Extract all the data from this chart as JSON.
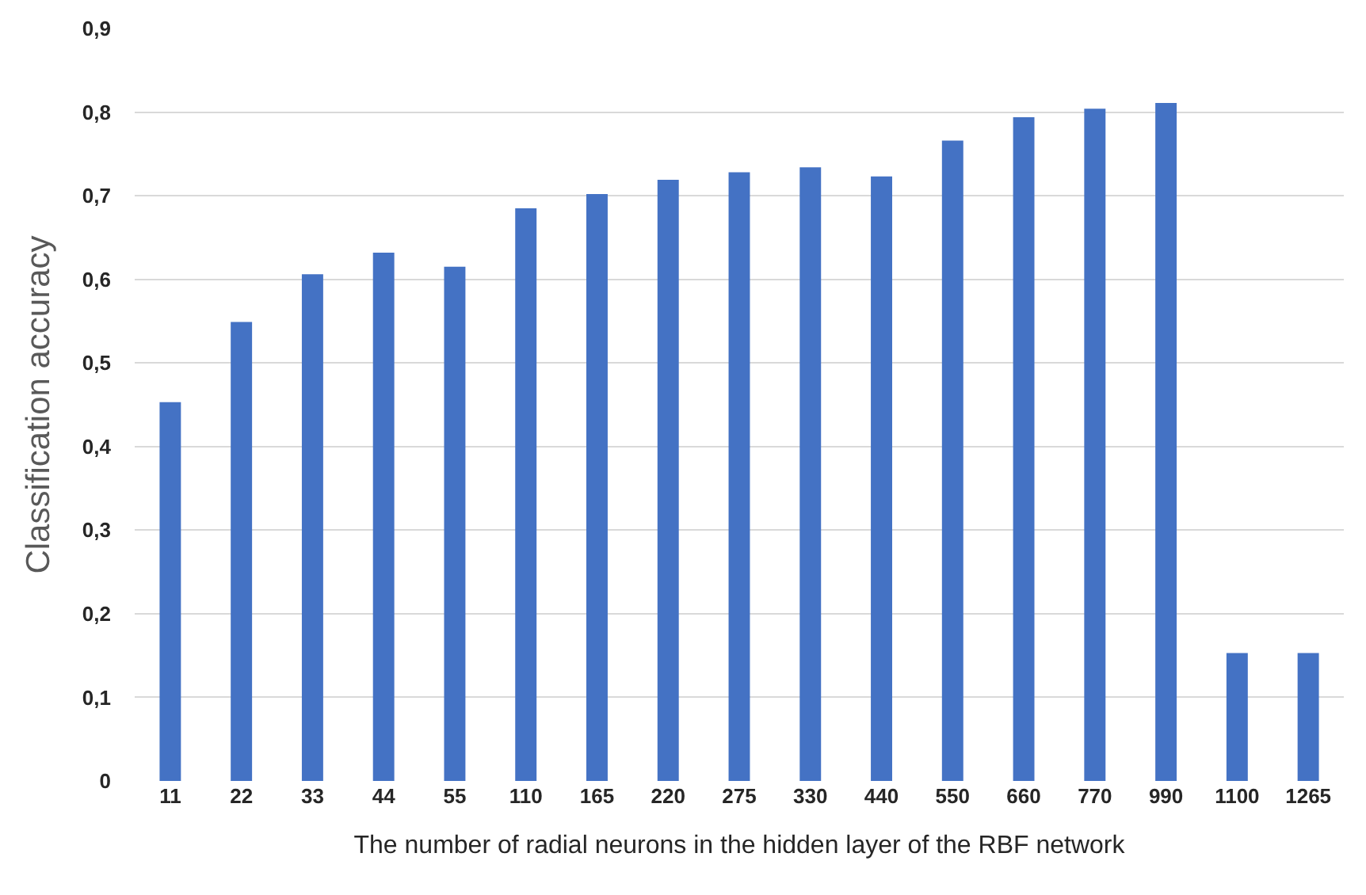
{
  "chart_data": {
    "type": "bar",
    "xlabel": "The number of radial neurons in the hidden layer of the RBF network",
    "ylabel": "Classification accuracy",
    "categories": [
      "11",
      "22",
      "33",
      "44",
      "55",
      "110",
      "165",
      "220",
      "275",
      "330",
      "440",
      "550",
      "660",
      "770",
      "990",
      "1100",
      "1265"
    ],
    "values": [
      0.453,
      0.549,
      0.606,
      0.632,
      0.615,
      0.685,
      0.702,
      0.719,
      0.728,
      0.734,
      0.723,
      0.766,
      0.794,
      0.804,
      0.811,
      0.153,
      0.153
    ],
    "color": "#4472c4",
    "ylim": [
      0,
      0.9
    ],
    "yticks": [
      0,
      {
        "value": 0.1,
        "label": "0,1"
      },
      {
        "value": 0.2,
        "label": "0,2"
      },
      {
        "value": 0.3,
        "label": "0,3"
      },
      {
        "value": 0.4,
        "label": "0,4"
      },
      {
        "value": 0.5,
        "label": "0,5"
      },
      {
        "value": 0.6,
        "label": "0,6"
      },
      {
        "value": 0.7,
        "label": "0,7"
      },
      {
        "value": 0.8,
        "label": "0,8"
      },
      {
        "value": 0.9,
        "label": "0,9"
      }
    ],
    "grid": "y"
  }
}
